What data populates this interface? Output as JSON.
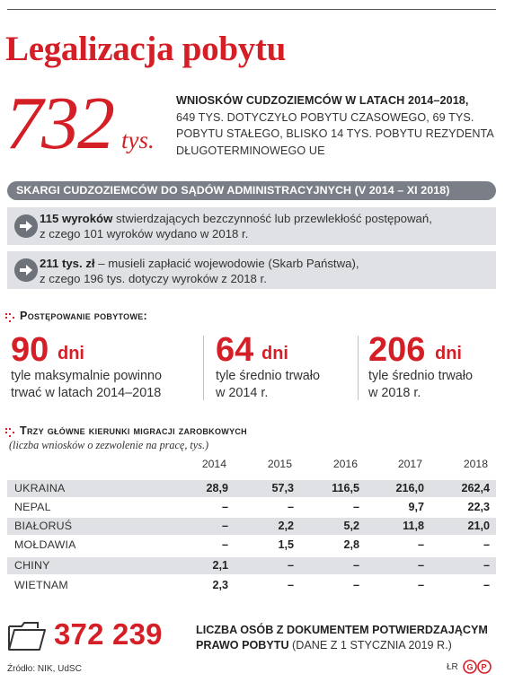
{
  "title": "Legalizacja pobytu",
  "headline": {
    "number": "732",
    "unit": "tys.",
    "lead": "wniosków cudzoziemców w latach 2014–2018,",
    "rest": "649 tys. dotyczyło pobytu czasowego, 69 tys. pobytu stałego, blisko 14 tys. pobytu rezydenta długoterminowego UE"
  },
  "complaints": {
    "heading": "Skargi cudzoziemców do sądów administracyjnych (V 2014 – XI 2018)",
    "items": [
      {
        "bold": "115 wyroków",
        "text_line1": " stwierdzających bezczynność lub przewlekłość postępowań,",
        "text_line2": "z czego 101 wyroków wydano w 2018 r."
      },
      {
        "bold": "211 tys. zł",
        "text_line1": " – musieli zapłacić wojewodowie (Skarb Państwa),",
        "text_line2": "z czego 196 tys. dotyczy wyroków z 2018 r."
      }
    ]
  },
  "procedure": {
    "heading": "Postępowanie pobytowe:",
    "stats": [
      {
        "value": "90",
        "unit": "dni",
        "line1": "tyle maksymalnie powinno",
        "line2": "trwać w latach 2014–2018"
      },
      {
        "value": "64",
        "unit": "dni",
        "line1": "tyle średnio trwało",
        "line2": "w 2014 r."
      },
      {
        "value": "206",
        "unit": "dni",
        "line1": "tyle średnio trwało",
        "line2": "w 2018 r."
      }
    ]
  },
  "migration": {
    "heading": "Trzy główne kierunki migracji zarobkowych",
    "subheading": "(liczba wniosków o zezwolenie na pracę, tys.)",
    "years": [
      "2014",
      "2015",
      "2016",
      "2017",
      "2018"
    ],
    "rows": [
      {
        "country": "UKRAINA",
        "values": [
          "28,9",
          "57,3",
          "116,5",
          "216,0",
          "262,4"
        ]
      },
      {
        "country": "NEPAL",
        "values": [
          "–",
          "–",
          "–",
          "9,7",
          "22,3"
        ]
      },
      {
        "country": "BIAŁORUŚ",
        "values": [
          "–",
          "2,2",
          "5,2",
          "11,8",
          "21,0"
        ]
      },
      {
        "country": "MOŁDAWIA",
        "values": [
          "–",
          "1,5",
          "2,8",
          "–",
          "–"
        ]
      },
      {
        "country": "CHINY",
        "values": [
          "2,1",
          "–",
          "–",
          "–",
          "–"
        ]
      },
      {
        "country": "WIETNAM",
        "values": [
          "2,3",
          "–",
          "–",
          "–",
          "–"
        ]
      }
    ]
  },
  "total": {
    "number": "372 239",
    "bold": "Liczba osób z dokumentem potwierdzającym prawo pobytu",
    "note": " (dane z 1 stycznia 2019 r.)"
  },
  "footer": {
    "source": "Źródło: NIK, UdSC",
    "author": "ŁR",
    "logo_text": "GP"
  },
  "colors": {
    "accent": "#d41f26",
    "bar": "#7a7f87",
    "shade": "#dfe1e5",
    "arrow": "#6e737b"
  }
}
